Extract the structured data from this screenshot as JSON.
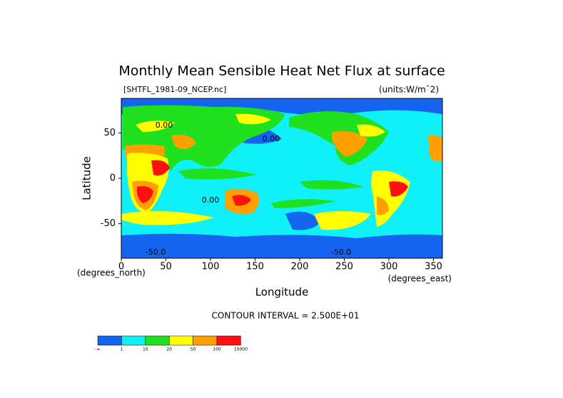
{
  "chart_data": {
    "type": "map",
    "title": "Monthly Mean Sensible Heat Net Flux at surface",
    "subtitle_left": "[SHTFL_1981-09_NCEP.nc]",
    "subtitle_right": "(units:W/m¯2)",
    "x_label": "Longitude",
    "y_label": "Latitude",
    "x_unit": "(degrees_east)",
    "y_unit": "(degrees_north)",
    "contour_interval": "CONTOUR INTERVAL = 2.500E+01",
    "xlim": [
      0,
      360
    ],
    "ylim": [
      -88,
      88
    ],
    "xticks": [
      0,
      50,
      100,
      150,
      200,
      250,
      300,
      350
    ],
    "yticks": [
      50,
      0,
      -50
    ],
    "grid": false,
    "annotations": [
      "0.00",
      "0.00",
      "0.00",
      "-50.0",
      "-50.0"
    ],
    "colorbar": {
      "colors": [
        "#1464f0",
        "#10f0f8",
        "#20e020",
        "#ffff00",
        "#ffa000",
        "#ff1010"
      ],
      "labels": [
        "-∞",
        "1",
        "10",
        "20",
        "50",
        "100",
        "10000"
      ]
    }
  }
}
